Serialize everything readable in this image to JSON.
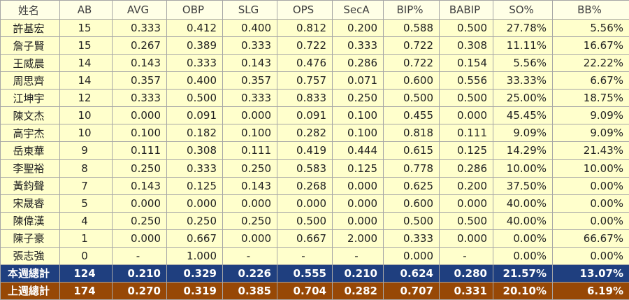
{
  "table": {
    "header": [
      "姓名",
      "AB",
      "AVG",
      "OBP",
      "SLG",
      "OPS",
      "SecA",
      "BIP%",
      "BABIP",
      "SO%",
      "BB%"
    ],
    "rows": [
      [
        "許基宏",
        "15",
        "0.333",
        "0.412",
        "0.400",
        "0.812",
        "0.200",
        "0.588",
        "0.500",
        "27.78%",
        "5.56%"
      ],
      [
        "詹子賢",
        "15",
        "0.267",
        "0.389",
        "0.333",
        "0.722",
        "0.333",
        "0.722",
        "0.308",
        "11.11%",
        "16.67%"
      ],
      [
        "王威晨",
        "14",
        "0.143",
        "0.333",
        "0.143",
        "0.476",
        "0.286",
        "0.722",
        "0.154",
        "5.56%",
        "22.22%"
      ],
      [
        "周思齊",
        "14",
        "0.357",
        "0.400",
        "0.357",
        "0.757",
        "0.071",
        "0.600",
        "0.556",
        "33.33%",
        "6.67%"
      ],
      [
        "江坤宇",
        "12",
        "0.333",
        "0.500",
        "0.333",
        "0.833",
        "0.250",
        "0.500",
        "0.500",
        "25.00%",
        "18.75%"
      ],
      [
        "陳文杰",
        "10",
        "0.000",
        "0.091",
        "0.000",
        "0.091",
        "0.100",
        "0.455",
        "0.000",
        "45.45%",
        "9.09%"
      ],
      [
        "高宇杰",
        "10",
        "0.100",
        "0.182",
        "0.100",
        "0.282",
        "0.100",
        "0.818",
        "0.111",
        "9.09%",
        "9.09%"
      ],
      [
        "岳東華",
        "9",
        "0.111",
        "0.308",
        "0.111",
        "0.419",
        "0.444",
        "0.615",
        "0.125",
        "14.29%",
        "21.43%"
      ],
      [
        "李聖裕",
        "8",
        "0.250",
        "0.333",
        "0.250",
        "0.583",
        "0.125",
        "0.778",
        "0.286",
        "10.00%",
        "10.00%"
      ],
      [
        "黃鈞聲",
        "7",
        "0.143",
        "0.125",
        "0.143",
        "0.268",
        "0.000",
        "0.625",
        "0.200",
        "37.50%",
        "0.00%"
      ],
      [
        "宋晟睿",
        "5",
        "0.000",
        "0.000",
        "0.000",
        "0.000",
        "0.000",
        "0.600",
        "0.000",
        "40.00%",
        "0.00%"
      ],
      [
        "陳偉漢",
        "4",
        "0.250",
        "0.250",
        "0.250",
        "0.500",
        "0.000",
        "0.500",
        "0.500",
        "40.00%",
        "0.00%"
      ],
      [
        "陳子豪",
        "1",
        "0.000",
        "0.667",
        "0.000",
        "0.667",
        "2.000",
        "0.333",
        "0.000",
        "0.00%",
        "66.67%"
      ],
      [
        "張志強",
        "0",
        "-",
        "1.000",
        "-",
        "-",
        "-",
        "0.000",
        "-",
        "0.00%",
        "0.00%"
      ]
    ],
    "totals": [
      [
        "本週總計",
        "124",
        "0.210",
        "0.329",
        "0.226",
        "0.555",
        "0.210",
        "0.624",
        "0.280",
        "21.57%",
        "13.07%"
      ],
      [
        "上週總計",
        "174",
        "0.270",
        "0.319",
        "0.385",
        "0.704",
        "0.282",
        "0.707",
        "0.331",
        "20.10%",
        "6.19%"
      ]
    ]
  }
}
